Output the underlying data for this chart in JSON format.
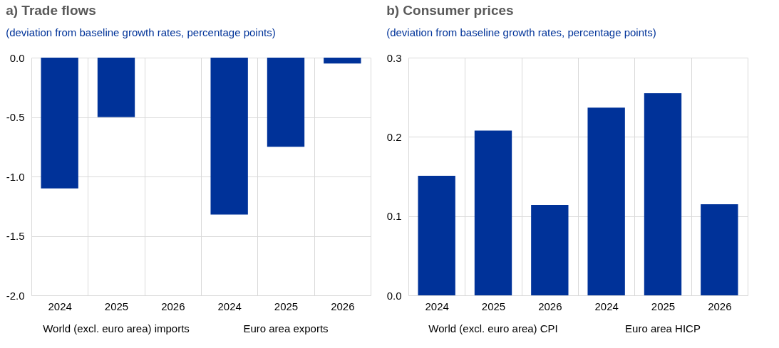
{
  "chart_data": [
    {
      "type": "bar",
      "title": "a) Trade flows",
      "subtitle": "(deviation from baseline growth rates, percentage points)",
      "categories": [
        "2024",
        "2025",
        "2026",
        "2024",
        "2025",
        "2026"
      ],
      "values": [
        -1.1,
        -0.5,
        0.0,
        -1.32,
        -0.75,
        -0.05
      ],
      "color": "#003299",
      "ylim": [
        -2.0,
        0.0
      ],
      "yticks": [
        {
          "value": -2.0,
          "label": "-2.0"
        },
        {
          "value": -1.5,
          "label": "-1.5"
        },
        {
          "value": -1.0,
          "label": "-1.0"
        },
        {
          "value": -0.5,
          "label": "-0.5"
        },
        {
          "value": 0.0,
          "label": "0.0"
        }
      ],
      "grid": true,
      "annotations": [
        "World (excl. euro area) imports",
        "Euro area exports"
      ]
    },
    {
      "type": "bar",
      "title": "b) Consumer prices",
      "subtitle": "(deviation from baseline growth rates, percentage points)",
      "categories": [
        "2024",
        "2025",
        "2026",
        "2024",
        "2025",
        "2026"
      ],
      "values": [
        0.151,
        0.208,
        0.114,
        0.237,
        0.255,
        0.115
      ],
      "color": "#003299",
      "ylim": [
        0.0,
        0.3
      ],
      "yticks": [
        {
          "value": 0.0,
          "label": "0.0"
        },
        0.1,
        0.2,
        0.3
      ],
      "grid": true,
      "annotations": [
        "World (excl. euro area) CPI",
        "Euro area  HICP"
      ]
    }
  ]
}
